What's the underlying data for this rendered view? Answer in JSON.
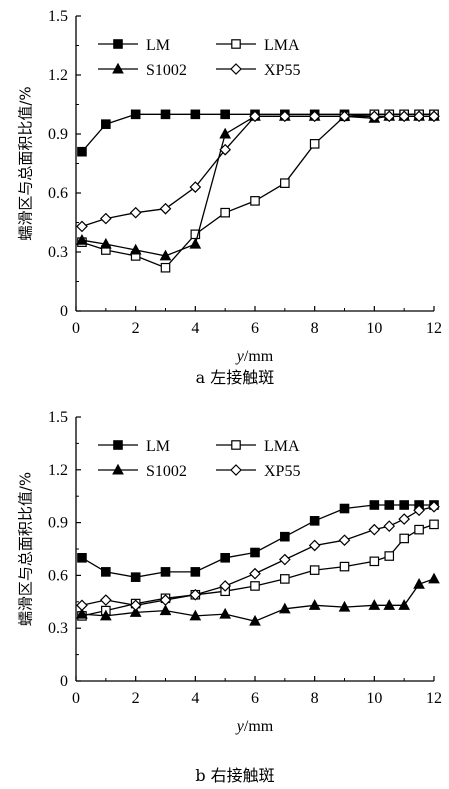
{
  "chart_data": [
    {
      "type": "line",
      "caption": "a 左接触斑",
      "ylabel": "蠕滑区与总面积比值/%",
      "xlabel": "y/mm",
      "xlabel_var": "y",
      "xlabel_unit": "/mm",
      "xlim": [
        0,
        12
      ],
      "ylim": [
        0,
        1.5
      ],
      "x_ticks": [
        "0",
        "2",
        "4",
        "6",
        "8",
        "10",
        "12"
      ],
      "y_ticks": [
        "0",
        "0.3",
        "0.6",
        "0.9",
        "1.2",
        "1.5"
      ],
      "legend_position": "top-left",
      "series": [
        {
          "name": "LM",
          "marker": "filled-square",
          "x": [
            0.2,
            1,
            2,
            3,
            4,
            5,
            6,
            7,
            8,
            9,
            10,
            10.5,
            11,
            11.5,
            12
          ],
          "y": [
            0.81,
            0.95,
            1.0,
            1.0,
            1.0,
            1.0,
            1.0,
            1.0,
            1.0,
            1.0,
            1.0,
            1.0,
            1.0,
            1.0,
            1.0
          ]
        },
        {
          "name": "LMA",
          "marker": "open-square",
          "x": [
            0.2,
            1,
            2,
            3,
            4,
            5,
            6,
            7,
            8,
            9,
            10,
            10.5,
            11,
            11.5,
            12
          ],
          "y": [
            0.35,
            0.31,
            0.28,
            0.22,
            0.39,
            0.5,
            0.56,
            0.65,
            0.85,
            0.99,
            1.0,
            1.0,
            1.0,
            1.0,
            1.0
          ]
        },
        {
          "name": "S1002",
          "marker": "filled-triangle",
          "x": [
            0.2,
            1,
            2,
            3,
            4,
            5,
            6,
            7,
            8,
            9,
            10,
            10.5,
            11,
            11.5,
            12
          ],
          "y": [
            0.36,
            0.34,
            0.31,
            0.28,
            0.34,
            0.9,
            0.99,
            0.99,
            0.99,
            0.99,
            0.98,
            0.99,
            0.99,
            0.99,
            0.99
          ]
        },
        {
          "name": "XP55",
          "marker": "open-diamond",
          "x": [
            0.2,
            1,
            2,
            3,
            4,
            5,
            6,
            7,
            8,
            9,
            10,
            10.5,
            11,
            11.5,
            12
          ],
          "y": [
            0.43,
            0.47,
            0.5,
            0.52,
            0.63,
            0.82,
            0.99,
            0.99,
            0.99,
            0.99,
            0.99,
            0.99,
            0.99,
            0.99,
            0.99
          ]
        }
      ]
    },
    {
      "type": "line",
      "caption": "b 右接触斑",
      "ylabel": "蠕滑区与总面积比值/%",
      "xlabel": "y/mm",
      "xlabel_var": "y",
      "xlabel_unit": "/mm",
      "xlim": [
        0,
        12
      ],
      "ylim": [
        0,
        1.5
      ],
      "x_ticks": [
        "0",
        "2",
        "4",
        "6",
        "8",
        "10",
        "12"
      ],
      "y_ticks": [
        "0",
        "0.3",
        "0.6",
        "0.9",
        "1.2",
        "1.5"
      ],
      "legend_position": "top-left",
      "series": [
        {
          "name": "LM",
          "marker": "filled-square",
          "x": [
            0.2,
            1,
            2,
            3,
            4,
            5,
            6,
            7,
            8,
            9,
            10,
            10.5,
            11,
            11.5,
            12
          ],
          "y": [
            0.7,
            0.62,
            0.59,
            0.62,
            0.62,
            0.7,
            0.73,
            0.82,
            0.91,
            0.98,
            1.0,
            1.0,
            1.0,
            1.0,
            1.0
          ]
        },
        {
          "name": "LMA",
          "marker": "open-square",
          "x": [
            0.2,
            1,
            2,
            3,
            4,
            5,
            6,
            7,
            8,
            9,
            10,
            10.5,
            11,
            11.5,
            12
          ],
          "y": [
            0.37,
            0.4,
            0.44,
            0.47,
            0.49,
            0.51,
            0.54,
            0.58,
            0.63,
            0.65,
            0.68,
            0.71,
            0.81,
            0.86,
            0.89
          ]
        },
        {
          "name": "S1002",
          "marker": "filled-triangle",
          "x": [
            0.2,
            1,
            2,
            3,
            4,
            5,
            6,
            7,
            8,
            9,
            10,
            10.5,
            11,
            11.5,
            12
          ],
          "y": [
            0.38,
            0.37,
            0.39,
            0.4,
            0.37,
            0.38,
            0.34,
            0.41,
            0.43,
            0.42,
            0.43,
            0.43,
            0.43,
            0.55,
            0.58
          ]
        },
        {
          "name": "XP55",
          "marker": "open-diamond",
          "x": [
            0.2,
            1,
            2,
            3,
            4,
            5,
            6,
            7,
            8,
            9,
            10,
            10.5,
            11,
            11.5,
            12
          ],
          "y": [
            0.43,
            0.46,
            0.43,
            0.46,
            0.49,
            0.54,
            0.61,
            0.69,
            0.77,
            0.8,
            0.86,
            0.88,
            0.92,
            0.97,
            0.99
          ]
        }
      ]
    }
  ]
}
